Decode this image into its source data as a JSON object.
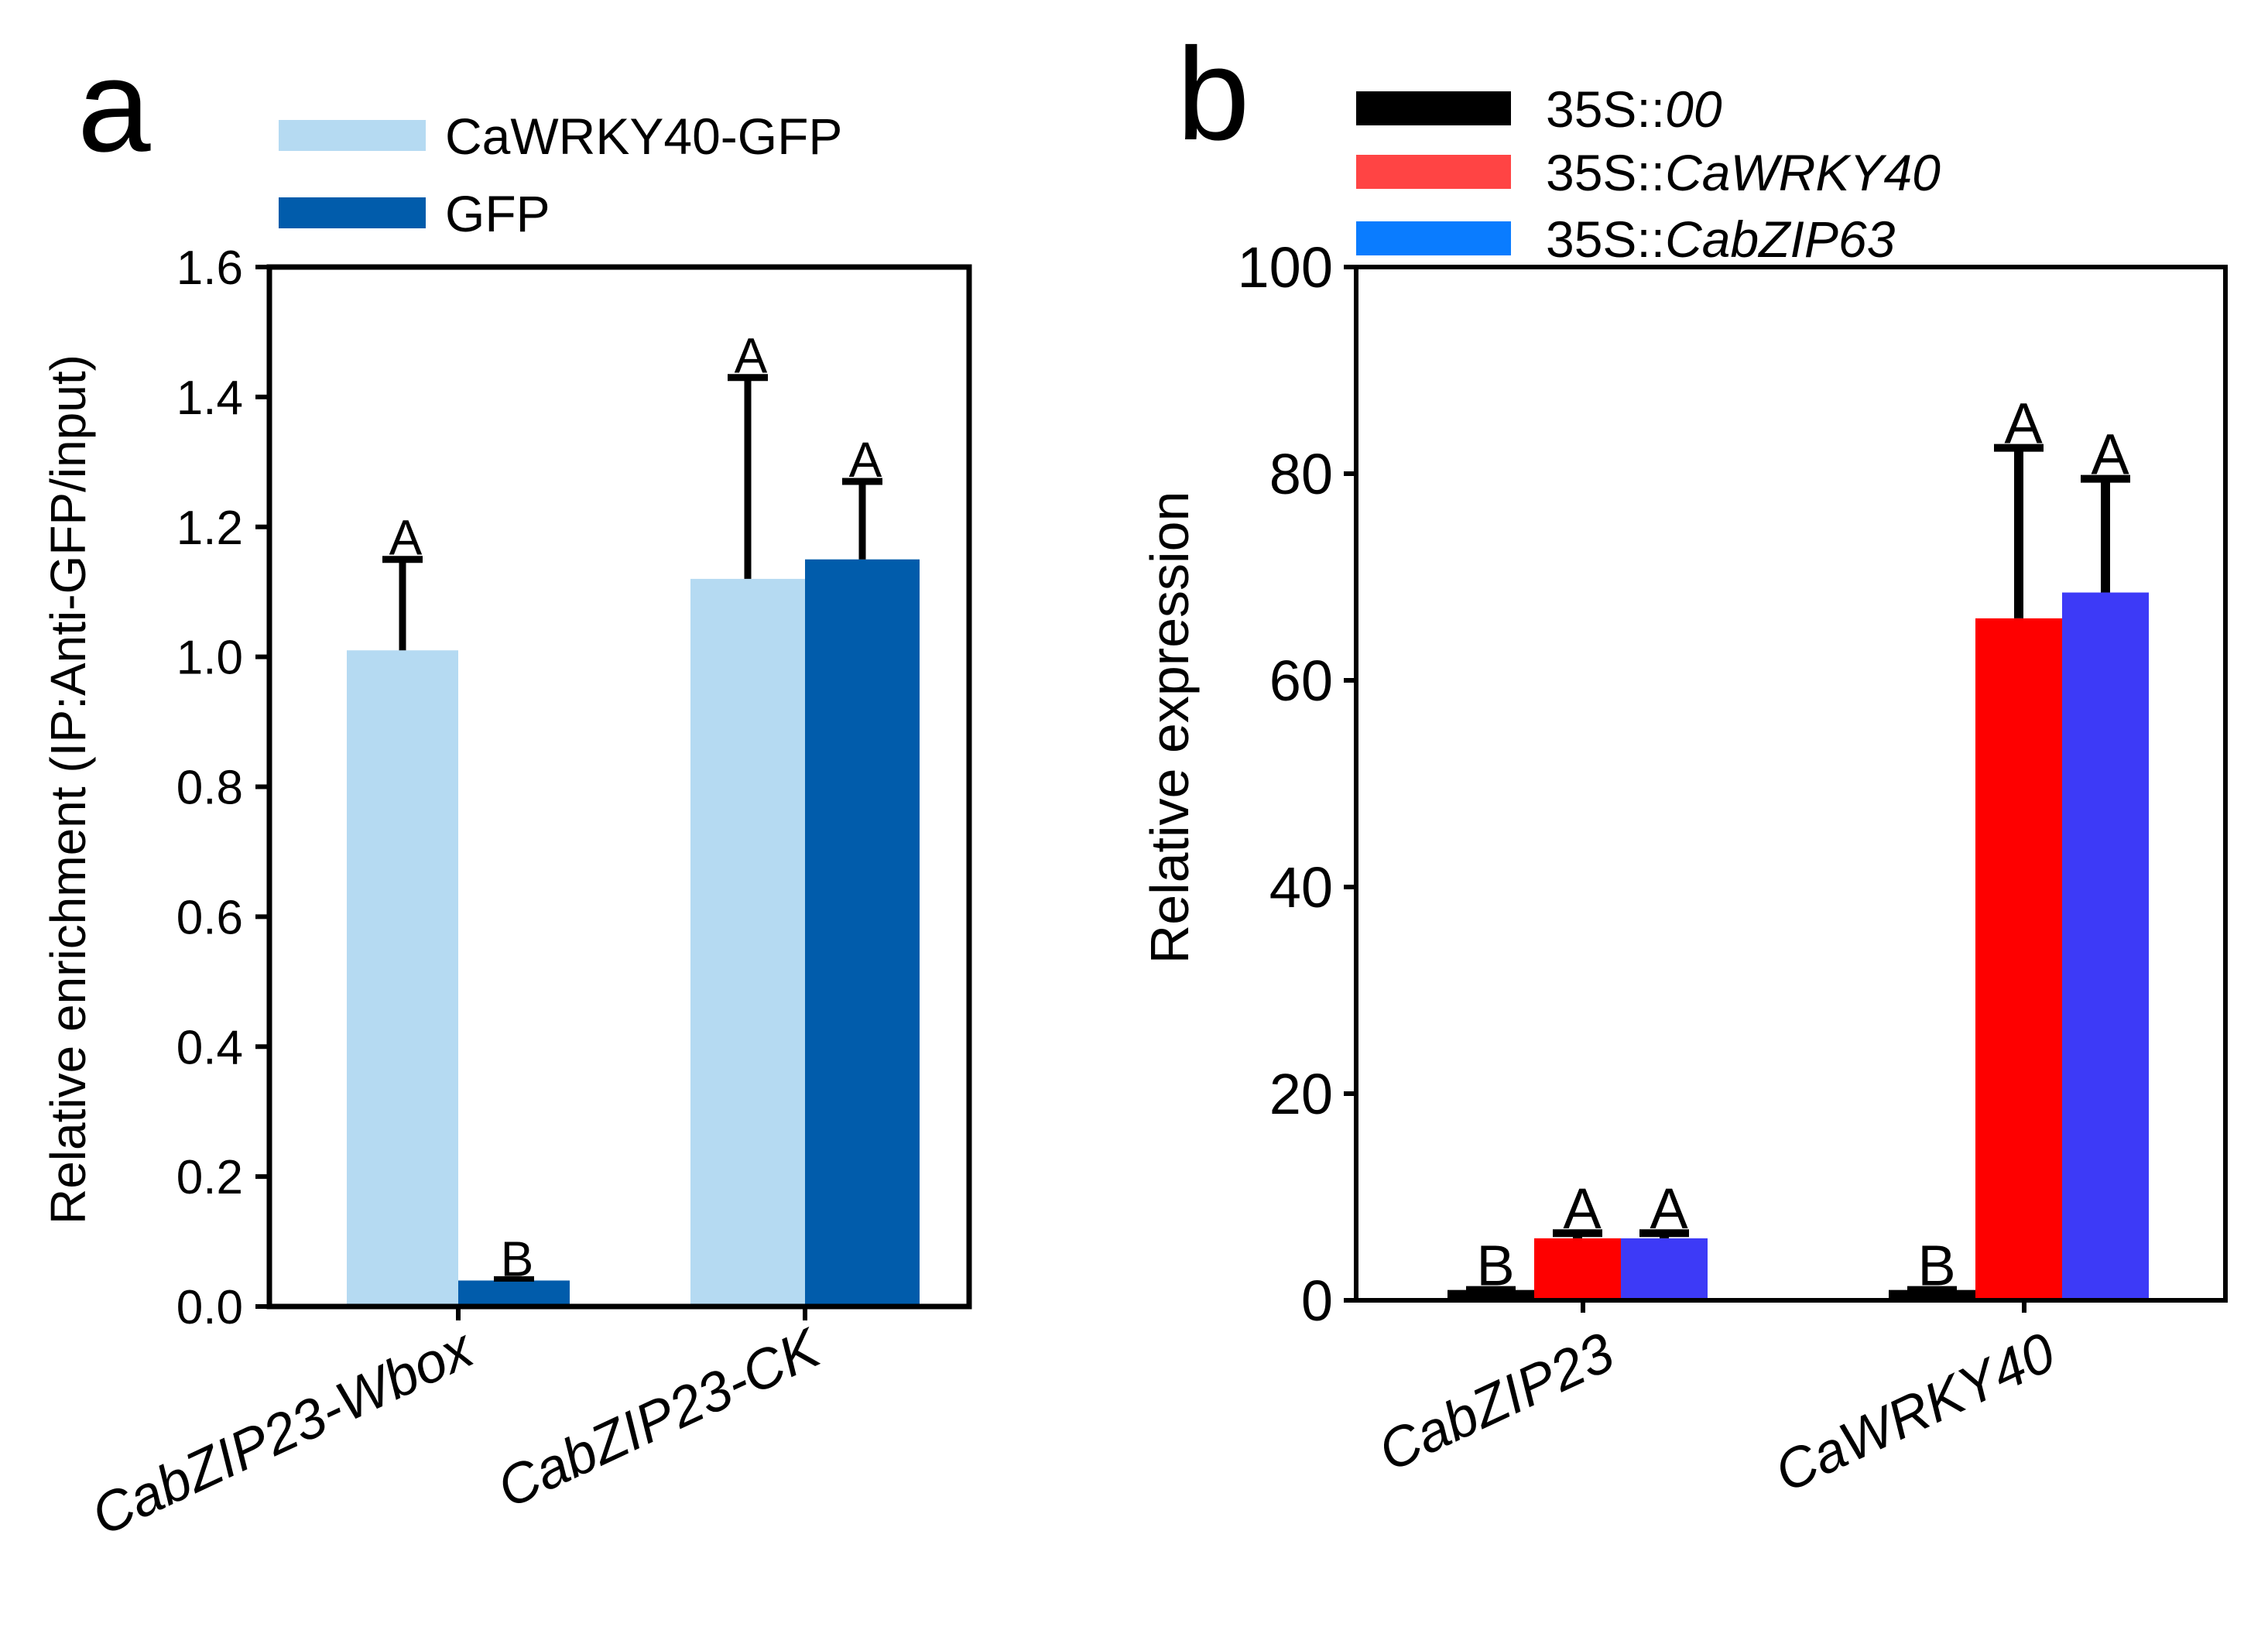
{
  "figure": {
    "panels": [
      "a",
      "b"
    ]
  },
  "chart_data": [
    {
      "type": "bar",
      "panel": "a",
      "categories": [
        "CabZIP23-Wbox",
        "CabZIP23-CK"
      ],
      "series": [
        {
          "name": "CaWRKY40-GFP",
          "color": "#b5daf2",
          "values": [
            1.01,
            1.12
          ],
          "errors": [
            0.14,
            0.31
          ],
          "letters": [
            "A",
            "A"
          ]
        },
        {
          "name": "GFP",
          "color": "#015cab",
          "values": [
            0.04,
            1.15
          ],
          "errors": [
            0.0,
            0.12
          ],
          "letters": [
            "B",
            "A"
          ]
        }
      ],
      "title": "",
      "xlabel": "",
      "ylabel": "Relative enrichment (IP:Anti-GFP/input)",
      "ylim": [
        0,
        1.6
      ],
      "yticks": [
        "0.0",
        "0.2",
        "0.4",
        "0.6",
        "0.8",
        "1.0",
        "1.2",
        "1.4",
        "1.6"
      ],
      "legend_position": "top"
    },
    {
      "type": "bar",
      "panel": "b",
      "categories": [
        "CabZIP23",
        "CaWRKY40"
      ],
      "series": [
        {
          "prefix": "35S::",
          "name": "00",
          "legend_color": "#000000",
          "color": "#000000",
          "values": [
            1.0,
            1.0
          ],
          "errors": [
            0.0,
            0.0
          ],
          "letters": [
            "B",
            "B"
          ]
        },
        {
          "prefix": "35S::",
          "name": "CaWRKY40",
          "legend_color": "#ff4444",
          "color": "#fe0000",
          "values": [
            6.0,
            66.0
          ],
          "errors": [
            0.5,
            16.5
          ],
          "letters": [
            "A",
            "A"
          ]
        },
        {
          "prefix": "35S::",
          "name": "CabZIP63",
          "legend_color": "#0a7cff",
          "color": "#3d3af7",
          "values": [
            6.0,
            68.5
          ],
          "errors": [
            0.5,
            11.0
          ],
          "letters": [
            "A",
            "A"
          ]
        }
      ],
      "title": "",
      "xlabel": "",
      "ylabel": "Relative expression",
      "ylim": [
        0,
        100
      ],
      "yticks": [
        "0",
        "20",
        "40",
        "60",
        "80",
        "100"
      ],
      "legend_position": "top"
    }
  ]
}
